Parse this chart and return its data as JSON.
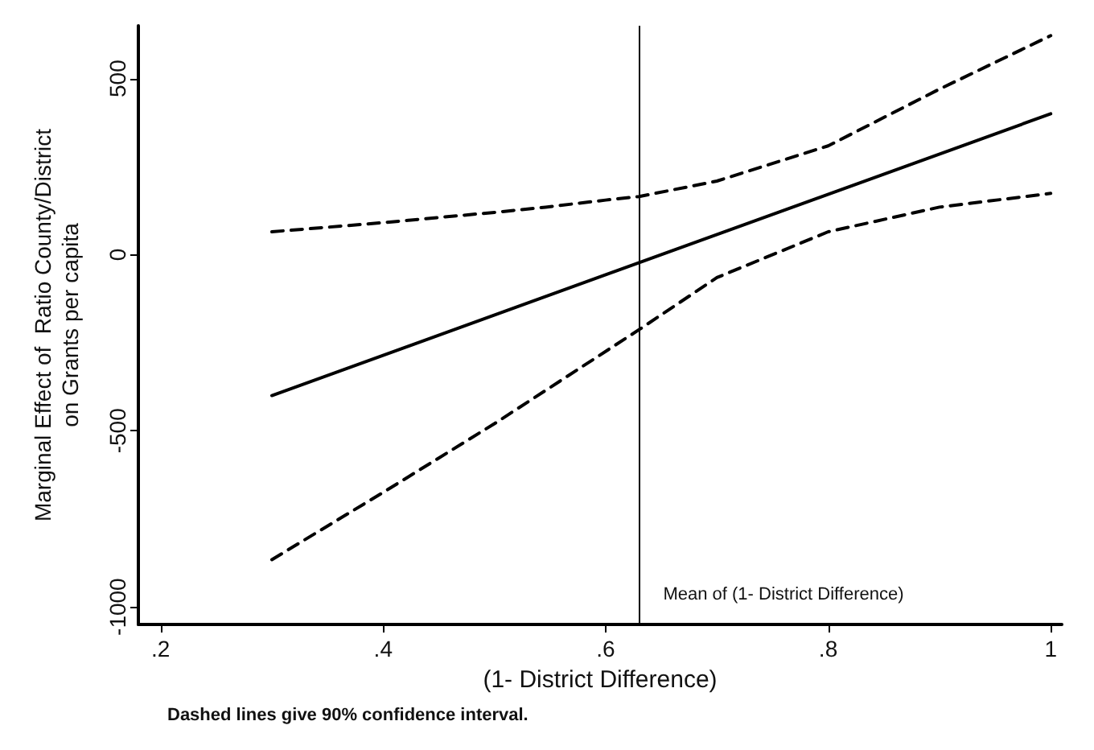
{
  "chart_data": {
    "type": "line",
    "xlabel": "(1- District Difference)",
    "ylabel": "Marginal Effect of  Ratio County/District\non Grants per capita",
    "xlim": [
      0.18,
      1.01
    ],
    "ylim": [
      -1050,
      650
    ],
    "xticks": [
      {
        "value": 0.2,
        "label": ".2"
      },
      {
        "value": 0.4,
        "label": ".4"
      },
      {
        "value": 0.6,
        "label": ".6"
      },
      {
        "value": 0.8,
        "label": ".8"
      },
      1
    ],
    "yticks": [
      -1000,
      -500,
      0,
      500
    ],
    "series": [
      {
        "color": "#000000",
        "line_style": "solid",
        "x": [
          0.3,
          1
        ],
        "values": [
          -400,
          400
        ]
      },
      {
        "color": "#000000",
        "line_style": "dashed",
        "x": [
          0.3,
          0.4,
          0.5,
          0.546,
          0.6,
          0.63,
          0.7,
          0.8,
          0.9,
          1
        ],
        "values": [
          65,
          91,
          120,
          135,
          155,
          165,
          209,
          309,
          470,
          622
        ]
      },
      {
        "color": "#000000",
        "line_style": "dashed",
        "x": [
          0.3,
          0.4,
          0.5,
          0.63,
          0.7,
          0.8,
          0.9,
          1
        ],
        "values": [
          -866,
          -675,
          -480,
          -213,
          -65,
          65,
          135,
          174
        ]
      }
    ],
    "ref_lines": [
      {
        "axis": "x",
        "value": 0.63,
        "label": "Mean of (1- District Difference)",
        "color": "#000000",
        "line_style": "solid"
      }
    ],
    "annotations": [
      "Dashed lines give 90% confidence interval."
    ],
    "grid": false,
    "marker": "none"
  }
}
